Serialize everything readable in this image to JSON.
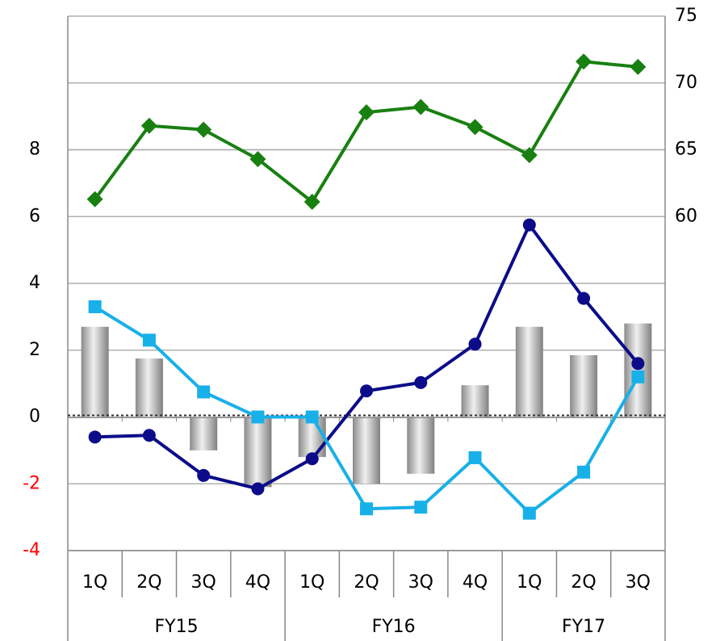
{
  "chart_data": {
    "type": "combo",
    "groups": [
      {
        "label": "FY15",
        "categories": [
          "1Q",
          "2Q",
          "3Q",
          "4Q"
        ]
      },
      {
        "label": "FY16",
        "categories": [
          "1Q",
          "2Q",
          "3Q",
          "4Q"
        ]
      },
      {
        "label": "FY17",
        "categories": [
          "1Q",
          "2Q",
          "3Q"
        ]
      }
    ],
    "series": [
      {
        "type": "bar",
        "color": "#a0a0a0",
        "values": [
          2.7,
          1.75,
          -1.0,
          -2.1,
          -1.2,
          -2.0,
          -1.7,
          0.95,
          2.7,
          1.85,
          2.8
        ]
      },
      {
        "type": "line",
        "marker": "diamond",
        "axis": "y2",
        "color": "#188010",
        "values": [
          61.3,
          66.8,
          66.5,
          64.3,
          61.1,
          67.8,
          68.2,
          66.7,
          64.6,
          71.6,
          71.2
        ]
      },
      {
        "type": "line",
        "marker": "circle",
        "color": "#0c0c8a",
        "values": [
          -0.6,
          -0.55,
          -1.75,
          -2.15,
          -1.25,
          0.78,
          1.03,
          2.18,
          5.75,
          3.55,
          1.6
        ]
      },
      {
        "type": "line",
        "marker": "square",
        "color": "#18b0e8",
        "values": [
          3.3,
          2.3,
          0.75,
          0,
          0,
          -2.75,
          -2.7,
          -1.22,
          -2.88,
          -1.65,
          1.2
        ]
      }
    ],
    "ylim": [
      -4,
      12
    ],
    "yticks": [
      -4,
      -2,
      0,
      2,
      4,
      6,
      8
    ],
    "y2lim": [
      35,
      75
    ],
    "y2ticks": [
      60,
      65,
      70,
      75
    ],
    "grid": true,
    "negative_tick_color": "#ff0000"
  }
}
